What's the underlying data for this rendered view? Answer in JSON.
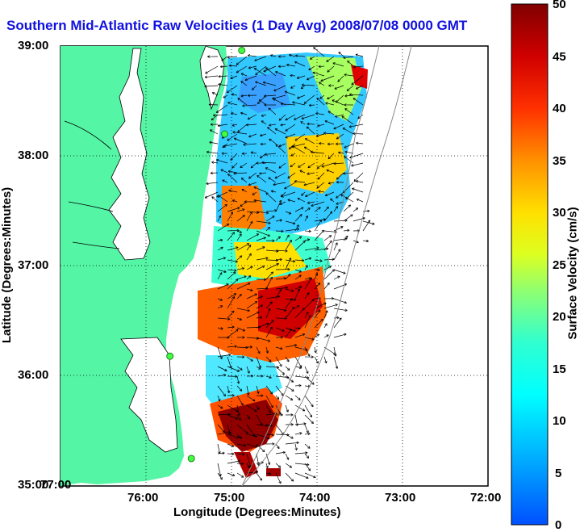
{
  "title": "Southern Mid-Atlantic Raw Velocities (1 Day Avg) 2008/07/08 0000 GMT",
  "map": {
    "xlabel": "Longitude (Degrees:Minutes)",
    "ylabel": "Latitude (Degrees:Minutes)",
    "x_ticks": [
      "77:00",
      "76:00",
      "75:00",
      "74:00",
      "73:00",
      "72:00"
    ],
    "y_ticks": [
      "39:00",
      "38:00",
      "37:00",
      "36:00",
      "35:00"
    ],
    "lon_range": [
      -77,
      -72
    ],
    "lat_range": [
      35,
      39
    ],
    "land_color": "#55f5a6",
    "grid": "dotted",
    "stations": [
      {
        "lon": -74.88,
        "lat": 38.96
      },
      {
        "lon": -75.08,
        "lat": 38.2
      },
      {
        "lon": -75.72,
        "lat": 36.18
      },
      {
        "lon": -75.47,
        "lat": 35.25
      }
    ]
  },
  "colorbar": {
    "label": "Surface Velocity (cm/s)",
    "ticks": [
      "50",
      "45",
      "40",
      "35",
      "30",
      "25",
      "20",
      "15",
      "10",
      "5",
      "0"
    ],
    "range": [
      0,
      50
    ],
    "colormap": [
      "#0000ff",
      "#00a0ff",
      "#00ffff",
      "#40ffc0",
      "#c0ff40",
      "#ffff00",
      "#ffa000",
      "#ff4000",
      "#e00000",
      "#800000"
    ]
  }
}
